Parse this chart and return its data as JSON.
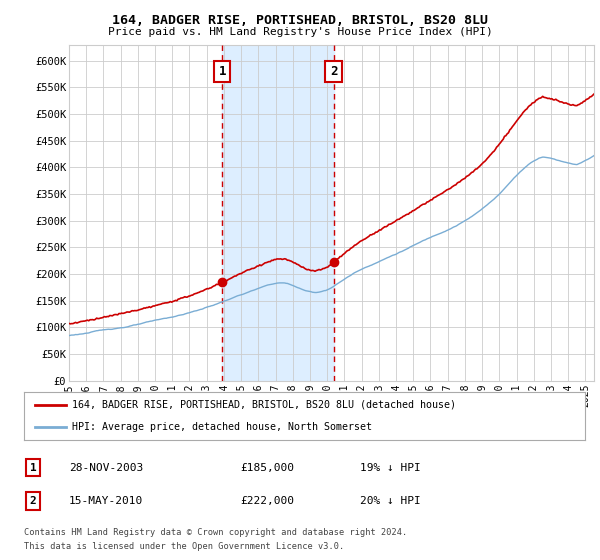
{
  "title1": "164, BADGER RISE, PORTISHEAD, BRISTOL, BS20 8LU",
  "title2": "Price paid vs. HM Land Registry's House Price Index (HPI)",
  "ylabel_ticks": [
    "£0",
    "£50K",
    "£100K",
    "£150K",
    "£200K",
    "£250K",
    "£300K",
    "£350K",
    "£400K",
    "£450K",
    "£500K",
    "£550K",
    "£600K"
  ],
  "ytick_vals": [
    0,
    50000,
    100000,
    150000,
    200000,
    250000,
    300000,
    350000,
    400000,
    450000,
    500000,
    550000,
    600000
  ],
  "ylim": [
    0,
    630000
  ],
  "xlim_start": 1995.0,
  "xlim_end": 2025.5,
  "purchase1_date": 2003.91,
  "purchase1_price": 185000,
  "purchase2_date": 2010.37,
  "purchase2_price": 222000,
  "hpi_color": "#7aadd4",
  "price_color": "#cc0000",
  "shaded_color": "#ddeeff",
  "vline_color": "#cc0000",
  "legend_label1": "164, BADGER RISE, PORTISHEAD, BRISTOL, BS20 8LU (detached house)",
  "legend_label2": "HPI: Average price, detached house, North Somerset",
  "table_row1": [
    "1",
    "28-NOV-2003",
    "£185,000",
    "19% ↓ HPI"
  ],
  "table_row2": [
    "2",
    "15-MAY-2010",
    "£222,000",
    "20% ↓ HPI"
  ],
  "footnote1": "Contains HM Land Registry data © Crown copyright and database right 2024.",
  "footnote2": "This data is licensed under the Open Government Licence v3.0.",
  "background_color": "#ffffff",
  "grid_color": "#cccccc"
}
